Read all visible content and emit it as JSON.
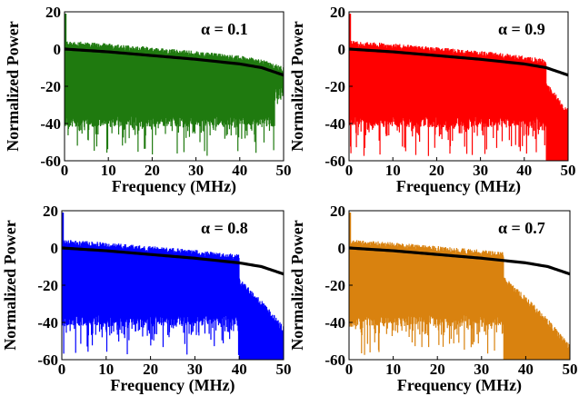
{
  "chart_data": [
    {
      "type": "area",
      "annotation": "α = 0.1",
      "xlabel": "Frequency (MHz)",
      "ylabel": "Normalized Power",
      "xlim": [
        0,
        50
      ],
      "ylim": [
        -60,
        20
      ],
      "xticks": [
        "0",
        "10",
        "20",
        "30",
        "40",
        "50"
      ],
      "yticks": [
        "20",
        "0",
        "-20",
        "-40",
        "-60"
      ],
      "spectrum_color": "#1f7a0f",
      "cutoff_mhz": 50,
      "envelope": {
        "x": [
          0,
          10,
          20,
          30,
          40,
          45,
          50
        ],
        "y": [
          0,
          -1.5,
          -3.5,
          -5.5,
          -8,
          -10,
          -14
        ]
      }
    },
    {
      "type": "area",
      "annotation": "α = 0.9",
      "xlabel": "Frequency (MHz)",
      "ylabel": "Normalized Power",
      "xlim": [
        0,
        50
      ],
      "ylim": [
        -60,
        20
      ],
      "xticks": [
        "0",
        "10",
        "20",
        "30",
        "40",
        "50"
      ],
      "yticks": [
        "20",
        "0",
        "-20",
        "-40",
        "-60"
      ],
      "spectrum_color": "#ff0000",
      "cutoff_mhz": 45,
      "envelope": {
        "x": [
          0,
          10,
          20,
          30,
          40,
          45,
          50
        ],
        "y": [
          0,
          -1.5,
          -3.5,
          -5.5,
          -8,
          -10,
          -14
        ]
      }
    },
    {
      "type": "area",
      "annotation": "α = 0.8",
      "xlabel": "Frequency (MHz)",
      "ylabel": "Normalized Power",
      "xlim": [
        0,
        50
      ],
      "ylim": [
        -60,
        20
      ],
      "xticks": [
        "0",
        "10",
        "20",
        "30",
        "40",
        "50"
      ],
      "yticks": [
        "20",
        "0",
        "-20",
        "-40",
        "-60"
      ],
      "spectrum_color": "#0000ff",
      "cutoff_mhz": 40,
      "envelope": {
        "x": [
          0,
          10,
          20,
          30,
          40,
          45,
          50
        ],
        "y": [
          0,
          -1.5,
          -3.5,
          -5.5,
          -8,
          -10,
          -14
        ]
      }
    },
    {
      "type": "area",
      "annotation": "α = 0.7",
      "xlabel": "Frequency (MHz)",
      "ylabel": "Normalized Power",
      "xlim": [
        0,
        50
      ],
      "ylim": [
        -60,
        20
      ],
      "xticks": [
        "0",
        "10",
        "20",
        "30",
        "40",
        "50"
      ],
      "yticks": [
        "20",
        "0",
        "-20",
        "-40",
        "-60"
      ],
      "spectrum_color": "#d9820f",
      "cutoff_mhz": 35,
      "envelope": {
        "x": [
          0,
          10,
          20,
          30,
          40,
          45,
          50
        ],
        "y": [
          0,
          -1.5,
          -3.5,
          -5.5,
          -8,
          -10,
          -14
        ]
      }
    }
  ]
}
